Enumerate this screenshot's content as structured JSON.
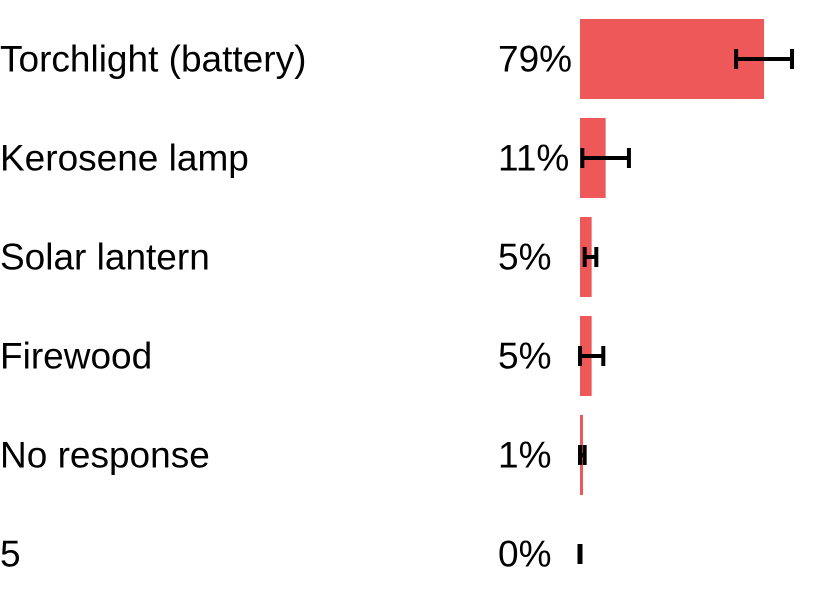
{
  "chart_data": {
    "type": "bar",
    "orientation": "horizontal",
    "title": "",
    "xlabel": "",
    "ylabel": "",
    "categories": [
      "Torchlight (battery)",
      "Kerosene lamp",
      "Solar lantern",
      "Firewood",
      "No response",
      "5"
    ],
    "values": [
      79,
      11,
      5,
      5,
      1,
      0
    ],
    "value_labels": [
      "79%",
      "11%",
      "5%",
      "5%",
      "1%",
      "0%"
    ],
    "error_low": [
      67,
      1,
      2,
      0,
      0,
      0
    ],
    "error_high": [
      91,
      21,
      7,
      10,
      2,
      0
    ],
    "xlim": [
      0,
      100
    ],
    "unit": "%",
    "grid": false,
    "legend": "none",
    "bar_color": "#ef5859",
    "errorbar_color": "#000000"
  }
}
